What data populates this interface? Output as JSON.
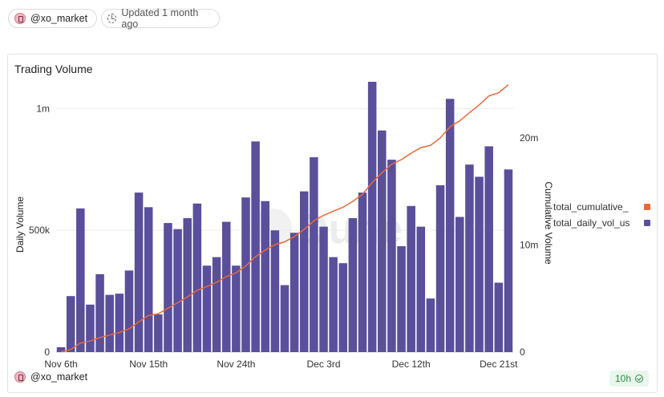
{
  "header": {
    "user_label": "@xo_market",
    "updated_label": "Updated 1 month ago",
    "user_icon": "avatar-icon",
    "updated_icon": "clock-icon"
  },
  "card": {
    "title": "Trading Volume",
    "footer_user": "@xo_market",
    "refresh_badge": "10h",
    "watermark": "Dune"
  },
  "colors": {
    "bar": "#5a4f9a",
    "line": "#e8693a",
    "grid": "#ececec",
    "badge_text": "#2f8a45"
  },
  "chart_data": {
    "type": "bar",
    "title": "Trading Volume",
    "ylabel": "Daily Volume",
    "y2label": "Cumulative Volume",
    "ylim": [
      0,
      1100000
    ],
    "y2lim": [
      0,
      25000000
    ],
    "yticks": [
      {
        "value": 0,
        "label": "0"
      },
      {
        "value": 500000,
        "label": "500k"
      },
      {
        "value": 1000000,
        "label": "1m"
      }
    ],
    "y2ticks": [
      {
        "value": 0,
        "label": "0"
      },
      {
        "value": 10000000,
        "label": "10m"
      },
      {
        "value": 20000000,
        "label": "20m"
      }
    ],
    "xtick_labels": [
      {
        "index": 0,
        "label": "Nov 6th"
      },
      {
        "index": 9,
        "label": "Nov 15th"
      },
      {
        "index": 18,
        "label": "Nov 24th"
      },
      {
        "index": 27,
        "label": "Dec 3rd"
      },
      {
        "index": 36,
        "label": "Dec 12th"
      },
      {
        "index": 45,
        "label": "Dec 21st"
      }
    ],
    "legend": {
      "position": "right",
      "entries": [
        {
          "label": "total_cumulative_",
          "color": "#e8693a"
        },
        {
          "label": "total_daily_vol_us",
          "color": "#5a4f9a"
        }
      ]
    },
    "series": [
      {
        "name": "total_daily_vol_us",
        "kind": "bar",
        "axis": "left",
        "values": [
          20000,
          230000,
          590000,
          195000,
          320000,
          235000,
          240000,
          335000,
          655000,
          595000,
          155000,
          530000,
          505000,
          550000,
          610000,
          355000,
          390000,
          535000,
          355000,
          635000,
          865000,
          620000,
          500000,
          275000,
          490000,
          660000,
          800000,
          515000,
          390000,
          365000,
          550000,
          655000,
          1110000,
          910000,
          790000,
          435000,
          600000,
          515000,
          220000,
          685000,
          1040000,
          555000,
          770000,
          720000,
          845000,
          285000,
          750000
        ]
      },
      {
        "name": "total_cumulative_",
        "kind": "line",
        "axis": "right",
        "values": [
          20000,
          250000,
          840000,
          1035000,
          1355000,
          1590000,
          1830000,
          2165000,
          2820000,
          3415000,
          3570000,
          4100000,
          4605000,
          5155000,
          5765000,
          6120000,
          6510000,
          7045000,
          7400000,
          8035000,
          8900000,
          9520000,
          10020000,
          10295000,
          10785000,
          11445000,
          12245000,
          12760000,
          13150000,
          13515000,
          14065000,
          14720000,
          15830000,
          16740000,
          17530000,
          17965000,
          18565000,
          19080000,
          19300000,
          19985000,
          21025000,
          21580000,
          22350000,
          23070000,
          23915000,
          24200000,
          24950000
        ]
      }
    ]
  }
}
